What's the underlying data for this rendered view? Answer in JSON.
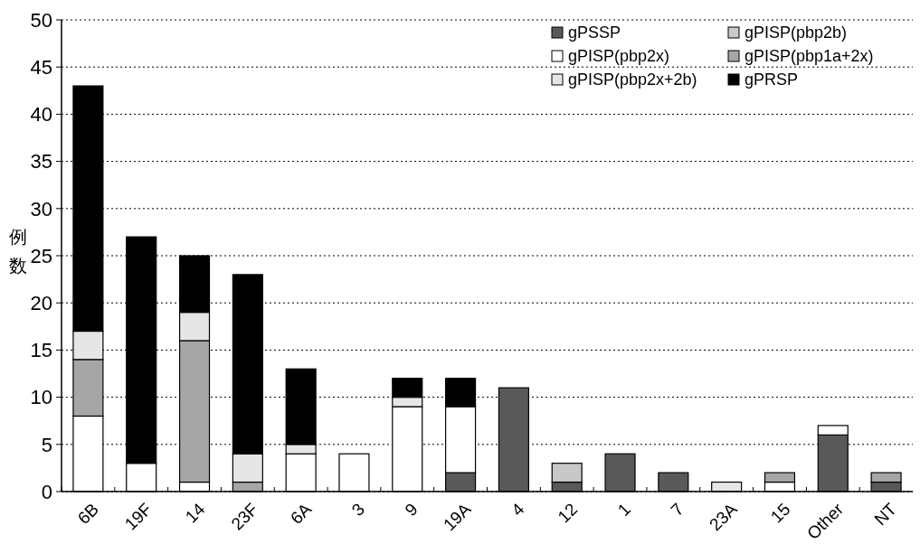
{
  "chart_data": {
    "type": "bar",
    "stacked": true,
    "ylabel": "例数",
    "categories": [
      "6B",
      "19F",
      "14",
      "23F",
      "6A",
      "3",
      "9",
      "19A",
      "4",
      "12",
      "1",
      "7",
      "23A",
      "15",
      "Other",
      "NT"
    ],
    "series": [
      {
        "name": "gPSSP",
        "color": "#595959",
        "values": [
          0,
          0,
          0,
          0,
          0,
          0,
          0,
          2,
          11,
          1,
          4,
          2,
          0,
          0,
          6,
          1
        ]
      },
      {
        "name": "gPISP(pbp2b)",
        "color": "#c8c8c8",
        "values": [
          0,
          0,
          0,
          0,
          0,
          0,
          0,
          0,
          0,
          2,
          0,
          0,
          0,
          0,
          0,
          0
        ]
      },
      {
        "name": "gPISP(pbp2x)",
        "color": "#ffffff",
        "values": [
          8,
          3,
          1,
          0,
          4,
          4,
          9,
          7,
          0,
          0,
          0,
          0,
          0,
          1,
          1,
          0
        ]
      },
      {
        "name": "gPISP(pbp1a+2x)",
        "color": "#a6a6a6",
        "values": [
          6,
          0,
          15,
          1,
          0,
          0,
          0,
          0,
          0,
          0,
          0,
          0,
          0,
          1,
          0,
          1
        ]
      },
      {
        "name": "gPISP(pbp2x+2b)",
        "color": "#e6e6e6",
        "values": [
          3,
          0,
          3,
          3,
          1,
          0,
          1,
          0,
          0,
          0,
          0,
          0,
          1,
          0,
          0,
          0
        ]
      },
      {
        "name": "gPRSP",
        "color": "#000000",
        "values": [
          26,
          24,
          6,
          19,
          8,
          0,
          2,
          3,
          0,
          0,
          0,
          0,
          0,
          0,
          0,
          0
        ]
      }
    ],
    "ylim": [
      0,
      50
    ],
    "yticks": [
      0,
      5,
      10,
      15,
      20,
      25,
      30,
      35,
      40,
      45,
      50
    ],
    "grid": "y",
    "legend": "top right"
  }
}
